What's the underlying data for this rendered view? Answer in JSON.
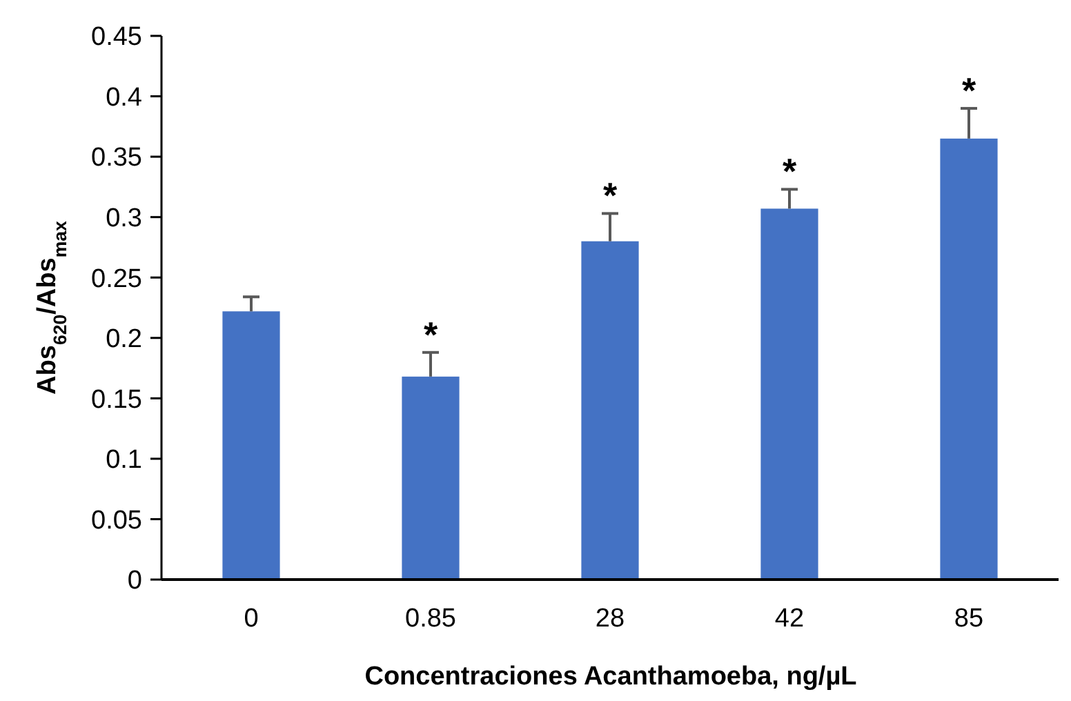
{
  "chart_data": {
    "type": "bar",
    "xlabel": "Concentraciones Acanthamoeba, ng/µL",
    "ylabel": "Abs$_{620}$/Abs$_{max}$",
    "categories": [
      "0",
      "0.85",
      "28",
      "42",
      "85"
    ],
    "values": [
      0.222,
      0.168,
      0.28,
      0.307,
      0.365
    ],
    "errors": [
      0.012,
      0.02,
      0.023,
      0.016,
      0.025
    ],
    "color": "#4472c4",
    "ylim": [
      0,
      0.45
    ],
    "yticks": [
      0,
      0.05,
      0.1,
      0.15,
      0.2,
      0.25,
      0.3,
      0.35,
      0.4,
      0.45
    ],
    "annotations": [
      {
        "text": "*",
        "x": "0.85",
        "y": 0.188
      },
      {
        "text": "*",
        "x": "28",
        "y": 0.303
      },
      {
        "text": "*",
        "x": "42",
        "y": 0.323
      },
      {
        "text": "*",
        "x": "85",
        "y": 0.39
      }
    ]
  }
}
